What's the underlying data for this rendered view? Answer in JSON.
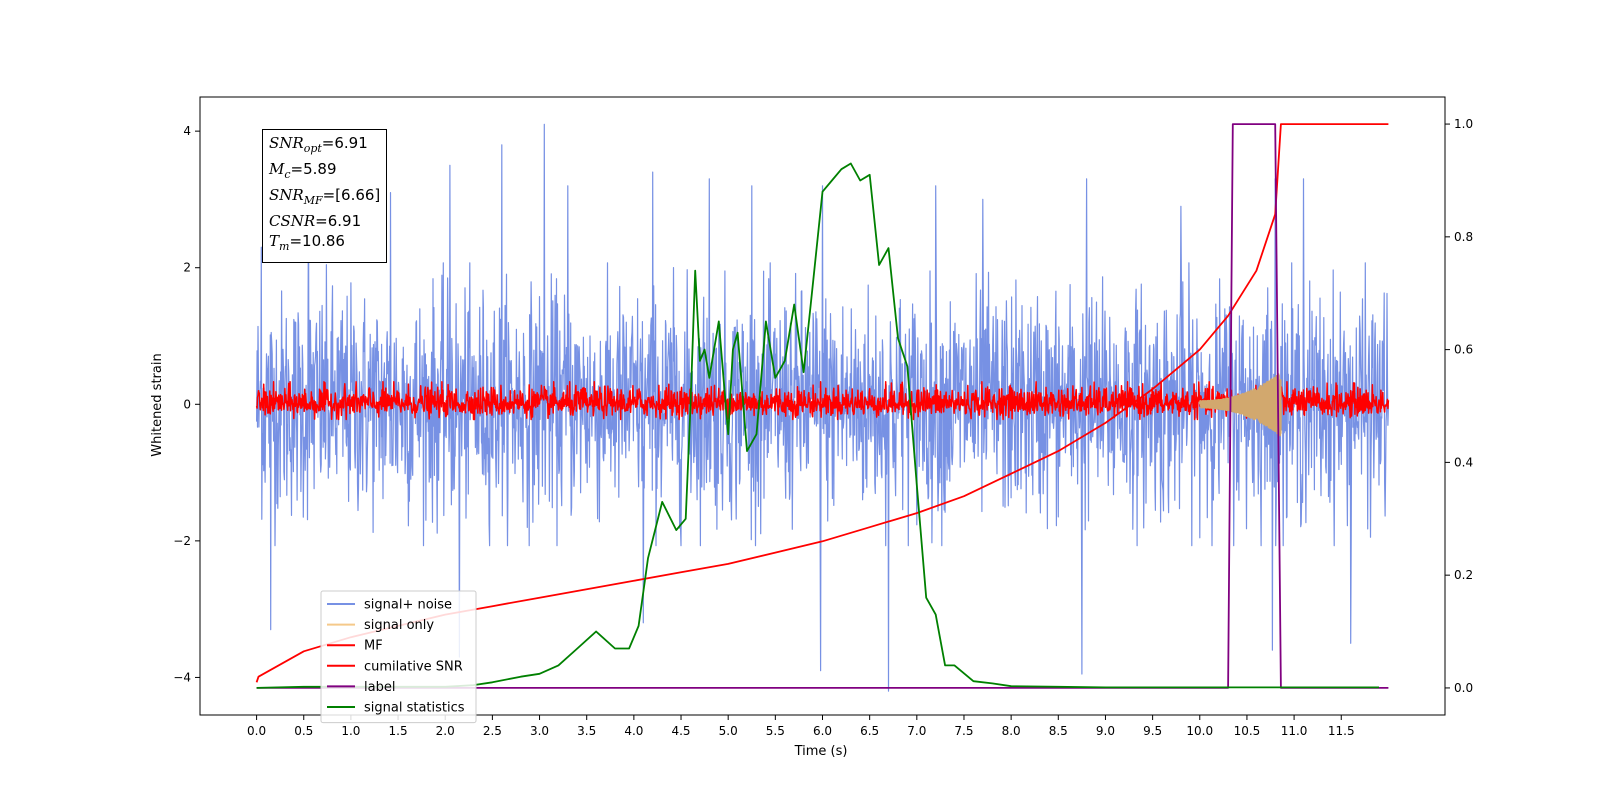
{
  "chart_data": {
    "type": "line",
    "xlabel": "Time (s)",
    "ylabel": "Whitened strain",
    "xlim": [
      -0.6,
      12.6
    ],
    "ylim": [
      -4.55,
      4.5
    ],
    "y2lim": [
      -0.048,
      1.048
    ],
    "x_ticks": [
      "0.0",
      "0.5",
      "1.0",
      "1.5",
      "2.0",
      "2.5",
      "3.0",
      "3.5",
      "4.0",
      "4.5",
      "5.0",
      "5.5",
      "6.0",
      "6.5",
      "7.0",
      "7.5",
      "8.0",
      "8.5",
      "9.0",
      "9.5",
      "10.0",
      "10.5",
      "11.0",
      "11.5"
    ],
    "y_ticks": [
      "−4",
      "−2",
      "0",
      "2",
      "4"
    ],
    "y2_ticks": [
      "0.0",
      "0.2",
      "0.4",
      "0.6",
      "0.8",
      "1.0"
    ],
    "annotation": {
      "snr_opt": {
        "sym": "SNR",
        "sub": "opt",
        "value": "=6.91"
      },
      "mc": {
        "sym": "M",
        "sub": "c",
        "value": "=5.89"
      },
      "snr_mf": {
        "sym": "SNR",
        "sub": "MF",
        "value": "=[6.66]"
      },
      "csnr": {
        "sym": "CSNR",
        "sub": "",
        "value": "=6.91"
      },
      "tm": {
        "sym": "T",
        "sub": "m",
        "value": "=10.86"
      }
    },
    "legend": {
      "placement": "lower-left",
      "entries": [
        {
          "label": "signal+ noise",
          "color": "#7791e4"
        },
        {
          "label": "signal only",
          "color": "#f5c98a"
        },
        {
          "label": "MF",
          "color": "#ff0000"
        },
        {
          "label": "cumilative SNR",
          "color": "#ff0000"
        },
        {
          "label": "label",
          "color": "#800080"
        },
        {
          "label": "signal statistics",
          "color": "#008000"
        }
      ]
    },
    "series": [
      {
        "name": "signal+ noise",
        "axis": "left",
        "color": "#7791e4",
        "kind": "noise",
        "x_range": [
          0.0,
          12.0
        ],
        "envelope": [
          -1.8,
          1.8
        ],
        "spikes": [
          [
            0.05,
            2.3
          ],
          [
            0.55,
            3.2
          ],
          [
            1.42,
            3.1
          ],
          [
            2.05,
            3.5
          ],
          [
            2.6,
            3.8
          ],
          [
            3.05,
            4.1
          ],
          [
            3.3,
            3.2
          ],
          [
            4.2,
            3.4
          ],
          [
            4.8,
            3.3
          ],
          [
            5.25,
            3.2
          ],
          [
            6.0,
            3.2
          ],
          [
            7.2,
            3.2
          ],
          [
            7.7,
            3.0
          ],
          [
            8.8,
            3.3
          ],
          [
            9.8,
            2.9
          ],
          [
            10.8,
            3.3
          ],
          [
            11.1,
            3.3
          ],
          [
            6.7,
            -4.2
          ],
          [
            5.98,
            -3.9
          ],
          [
            8.75,
            -3.95
          ],
          [
            4.1,
            -3.2
          ],
          [
            11.6,
            -3.5
          ],
          [
            0.15,
            -3.3
          ],
          [
            2.15,
            -3.7
          ],
          [
            10.77,
            -3.6
          ]
        ]
      },
      {
        "name": "signal only",
        "axis": "left",
        "color": "#d2a86e",
        "kind": "chirp",
        "x_range": [
          10.0,
          10.86
        ]
      },
      {
        "name": "MF",
        "axis": "left",
        "color": "#ff0000",
        "kind": "noise",
        "x_range": [
          0.0,
          12.0
        ],
        "envelope": [
          -0.2,
          0.28
        ]
      },
      {
        "name": "cumilative SNR",
        "axis": "right",
        "color": "#ff0000",
        "x": [
          0.0,
          0.02,
          0.5,
          1.0,
          1.5,
          2.0,
          2.5,
          3.0,
          3.5,
          4.0,
          4.5,
          5.0,
          5.5,
          6.0,
          6.5,
          7.0,
          7.5,
          8.0,
          8.5,
          9.0,
          9.5,
          10.0,
          10.3,
          10.6,
          10.8,
          10.86,
          12.0
        ],
        "y": [
          0.01,
          0.02,
          0.065,
          0.09,
          0.11,
          0.13,
          0.145,
          0.16,
          0.175,
          0.19,
          0.205,
          0.22,
          0.24,
          0.26,
          0.285,
          0.31,
          0.34,
          0.38,
          0.42,
          0.47,
          0.53,
          0.6,
          0.66,
          0.74,
          0.84,
          1.0,
          1.0
        ]
      },
      {
        "name": "label",
        "axis": "right",
        "color": "#800080",
        "x": [
          0.0,
          10.3,
          10.35,
          10.8,
          10.86,
          12.0
        ],
        "y": [
          0.0,
          0.0,
          1.0,
          1.0,
          0.0,
          0.0
        ]
      },
      {
        "name": "signal statistics",
        "axis": "right",
        "color": "#008000",
        "x": [
          0.0,
          0.5,
          1.0,
          1.5,
          2.0,
          2.3,
          2.5,
          2.8,
          3.0,
          3.2,
          3.4,
          3.6,
          3.8,
          3.95,
          4.05,
          4.15,
          4.3,
          4.45,
          4.55,
          4.6,
          4.65,
          4.7,
          4.75,
          4.8,
          4.9,
          5.0,
          5.05,
          5.1,
          5.2,
          5.3,
          5.4,
          5.5,
          5.6,
          5.7,
          5.8,
          5.9,
          6.0,
          6.1,
          6.2,
          6.3,
          6.4,
          6.5,
          6.6,
          6.7,
          6.8,
          6.9,
          7.0,
          7.1,
          7.2,
          7.3,
          7.4,
          7.6,
          7.8,
          8.0,
          8.5,
          9.0,
          10.0,
          11.0,
          11.9
        ],
        "y": [
          0.0,
          0.002,
          0.002,
          0.002,
          0.002,
          0.005,
          0.01,
          0.02,
          0.025,
          0.04,
          0.07,
          0.1,
          0.07,
          0.07,
          0.11,
          0.23,
          0.33,
          0.28,
          0.3,
          0.5,
          0.74,
          0.58,
          0.6,
          0.55,
          0.65,
          0.45,
          0.6,
          0.63,
          0.42,
          0.45,
          0.65,
          0.55,
          0.58,
          0.68,
          0.56,
          0.72,
          0.88,
          0.9,
          0.92,
          0.93,
          0.9,
          0.91,
          0.75,
          0.78,
          0.62,
          0.57,
          0.36,
          0.16,
          0.13,
          0.04,
          0.04,
          0.012,
          0.008,
          0.003,
          0.002,
          0.001,
          0.001,
          0.001,
          0.001
        ]
      }
    ]
  }
}
